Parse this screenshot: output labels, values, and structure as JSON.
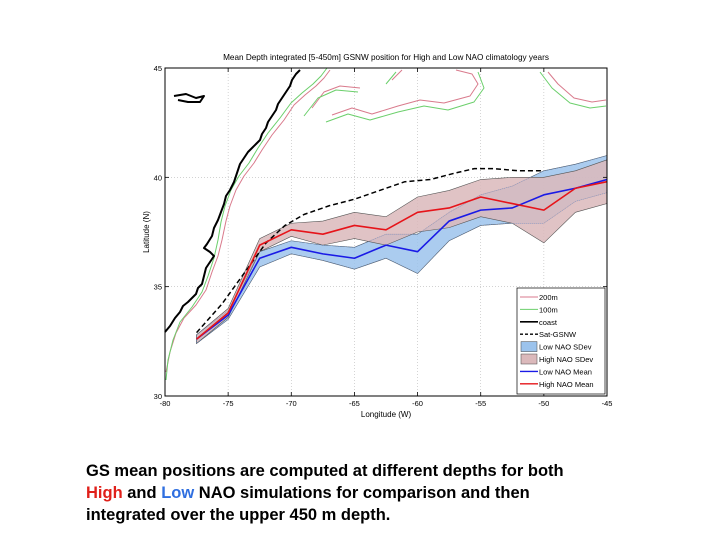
{
  "slide": {
    "caption": {
      "line1": "GS mean positions are computed at different depths for both",
      "line2_high": "High",
      "line2_and": " and ",
      "line2_low": "Low",
      "line2_rest": " NAO simulations for comparison and then",
      "line3": "integrated over the upper 450 m depth.",
      "colors": {
        "high": "#e0201a",
        "low": "#2f6fe0"
      }
    }
  },
  "chart_data": {
    "type": "line",
    "title": "Mean Depth integrated [5-450m] GSNW position for High and Low NAO climatology years",
    "xlabel": "Longitude (W)",
    "ylabel": "Latitude (N)",
    "xlim": [
      -80,
      -45
    ],
    "ylim": [
      30,
      45
    ],
    "xticks": [
      -80,
      -75,
      -70,
      -65,
      -60,
      -55,
      -50,
      -45
    ],
    "yticks": [
      30,
      35,
      40,
      45
    ],
    "grid": true,
    "legend_position": "bottom-right",
    "legend": [
      "200m",
      "100m",
      "coast",
      "Sat-GSNW",
      "Low NAO SDev",
      "High NAO SDev",
      "Low NAO Mean",
      "High NAO Mean"
    ],
    "series": [
      {
        "name": "Sat-GSNW",
        "style": "dashed",
        "color": "#000000",
        "x": [
          -77.5,
          -75.5,
          -73.5,
          -72,
          -70.5,
          -69,
          -67,
          -65,
          -63,
          -61,
          -59,
          -57,
          -55.5,
          -54,
          -52,
          -50
        ],
        "y": [
          32.9,
          34.2,
          35.8,
          37.0,
          37.8,
          38.3,
          38.7,
          39.0,
          39.4,
          39.8,
          39.9,
          40.2,
          40.4,
          40.4,
          40.3,
          40.3
        ]
      },
      {
        "name": "Low NAO Mean",
        "color": "#1a1ae6",
        "x": [
          -77.5,
          -75,
          -72.5,
          -70,
          -67.5,
          -65,
          -62.5,
          -60,
          -57.5,
          -55,
          -52.5,
          -50,
          -47.5,
          -45
        ],
        "y": [
          32.6,
          33.7,
          36.3,
          36.8,
          36.5,
          36.3,
          36.9,
          36.6,
          38.0,
          38.5,
          38.6,
          39.2,
          39.5,
          39.9
        ]
      },
      {
        "name": "High NAO Mean",
        "color": "#e6141a",
        "x": [
          -77.5,
          -75,
          -72.5,
          -70,
          -67.5,
          -65,
          -62.5,
          -60,
          -57.5,
          -55,
          -52.5,
          -50,
          -47.5,
          -45
        ],
        "y": [
          32.6,
          33.8,
          36.9,
          37.6,
          37.4,
          37.8,
          37.6,
          38.4,
          38.6,
          39.1,
          38.8,
          38.5,
          39.5,
          39.8
        ]
      },
      {
        "name": "Low NAO SDev",
        "type": "band",
        "color": "#9cc3ec",
        "x": [
          -77.5,
          -75,
          -72.5,
          -70,
          -67.5,
          -65,
          -62.5,
          -60,
          -57.5,
          -55,
          -52.5,
          -50,
          -47.5,
          -45
        ],
        "upper": [
          32.8,
          33.9,
          36.6,
          37.1,
          36.9,
          36.8,
          37.4,
          37.4,
          38.4,
          39.2,
          39.6,
          40.3,
          40.6,
          41.0
        ],
        "lower": [
          32.4,
          33.5,
          35.9,
          36.5,
          36.2,
          35.8,
          36.3,
          35.6,
          37.1,
          37.8,
          37.9,
          37.9,
          38.9,
          39.3
        ]
      },
      {
        "name": "High NAO SDev",
        "type": "band",
        "color": "#dbb9bb",
        "x": [
          -77.5,
          -75,
          -72.5,
          -70,
          -67.5,
          -65,
          -62.5,
          -60,
          -57.5,
          -55,
          -52.5,
          -50,
          -47.5,
          -45
        ],
        "upper": [
          32.8,
          34.0,
          37.2,
          37.9,
          38.0,
          38.4,
          38.2,
          39.1,
          39.4,
          39.9,
          40.0,
          40.0,
          40.3,
          40.8
        ],
        "lower": [
          32.4,
          33.6,
          36.6,
          37.3,
          36.9,
          37.2,
          36.9,
          37.5,
          37.7,
          38.2,
          37.9,
          37.0,
          38.4,
          38.8
        ]
      }
    ]
  }
}
